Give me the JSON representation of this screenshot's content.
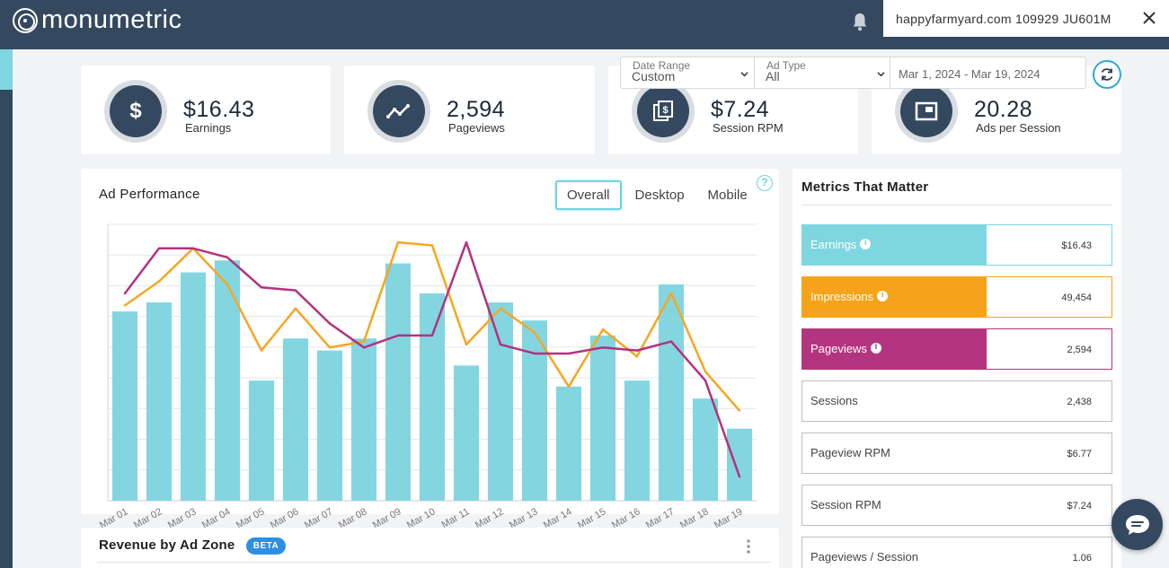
{
  "topbar": {
    "logo_text": "monumetric",
    "site_selector": "happyfarmyard.com 109929 JU601M",
    "icons": [
      "logo-icon",
      "bell-icon",
      "close-icon"
    ]
  },
  "stats": [
    {
      "value": "$16.43",
      "label": "Earnings",
      "icon": "dollar-icon"
    },
    {
      "value": "2,594",
      "label": "Pageviews",
      "icon": "trend-line-icon"
    },
    {
      "value": "$7.24",
      "label": "Session RPM",
      "icon": "dollar-pages-icon"
    },
    {
      "value": "20.28",
      "label": "Ads per Session",
      "icon": "ad-window-icon"
    }
  ],
  "filters": {
    "date_range": {
      "label": "Date Range",
      "value": "Custom"
    },
    "ad_type": {
      "label": "Ad Type",
      "value": "All"
    },
    "dates": {
      "value": "Mar 1, 2024 - Mar 19, 2024"
    }
  },
  "ad_performance": {
    "title": "Ad Performance",
    "tabs": [
      {
        "label": "Overall",
        "active": true
      },
      {
        "label": "Desktop",
        "active": false
      },
      {
        "label": "Mobile",
        "active": false
      }
    ],
    "help_text": "?"
  },
  "chart_data": {
    "type": "bar",
    "categories": [
      "Mar 01",
      "Mar 02",
      "Mar 03",
      "Mar 04",
      "Mar 05",
      "Mar 06",
      "Mar 07",
      "Mar 08",
      "Mar 09",
      "Mar 10",
      "Mar 11",
      "Mar 12",
      "Mar 13",
      "Mar 14",
      "Mar 15",
      "Mar 16",
      "Mar 17",
      "Mar 18",
      "Mar 19"
    ],
    "series": [
      {
        "kind": "bar",
        "color": "#83d6e0",
        "values": [
          0.63,
          0.66,
          0.76,
          0.8,
          0.4,
          0.54,
          0.5,
          0.54,
          0.79,
          0.69,
          0.45,
          0.66,
          0.6,
          0.38,
          0.55,
          0.4,
          0.72,
          0.34,
          0.24
        ]
      },
      {
        "kind": "line",
        "color": "#f5a623",
        "values": [
          0.65,
          0.73,
          0.84,
          0.72,
          0.5,
          0.64,
          0.51,
          0.53,
          0.86,
          0.85,
          0.52,
          0.64,
          0.56,
          0.38,
          0.57,
          0.48,
          0.69,
          0.43,
          0.3
        ]
      },
      {
        "kind": "line",
        "color": "#b3327e",
        "values": [
          0.69,
          0.84,
          0.84,
          0.81,
          0.71,
          0.7,
          0.59,
          0.51,
          0.55,
          0.55,
          0.86,
          0.52,
          0.49,
          0.49,
          0.51,
          0.5,
          0.53,
          0.4,
          0.08
        ]
      }
    ],
    "ylim": [
      0,
      0.92
    ],
    "grid": true
  },
  "revenue": {
    "title": "Revenue by Ad Zone",
    "badge": "BETA"
  },
  "metrics": {
    "title": "Metrics That Matter",
    "items": [
      {
        "label": "Earnings",
        "value": "$16.43",
        "color": "#7ed6e0",
        "fill": 0.595,
        "info": true
      },
      {
        "label": "Impressions",
        "value": "49,454",
        "color": "#f5a31a",
        "fill": 0.595,
        "info": true
      },
      {
        "label": "Pageviews",
        "value": "2,594",
        "color": "#b3357f",
        "fill": 0.595,
        "info": true
      },
      {
        "label": "Sessions",
        "value": "2,438",
        "color": "",
        "fill": 0,
        "info": false
      },
      {
        "label": "Pageview RPM",
        "value": "$6.77",
        "color": "",
        "fill": 0,
        "info": false
      },
      {
        "label": "Session RPM",
        "value": "$7.24",
        "color": "",
        "fill": 0,
        "info": false
      },
      {
        "label": "Pageviews / Session",
        "value": "1.06",
        "color": "",
        "fill": 0,
        "info": false
      }
    ]
  }
}
